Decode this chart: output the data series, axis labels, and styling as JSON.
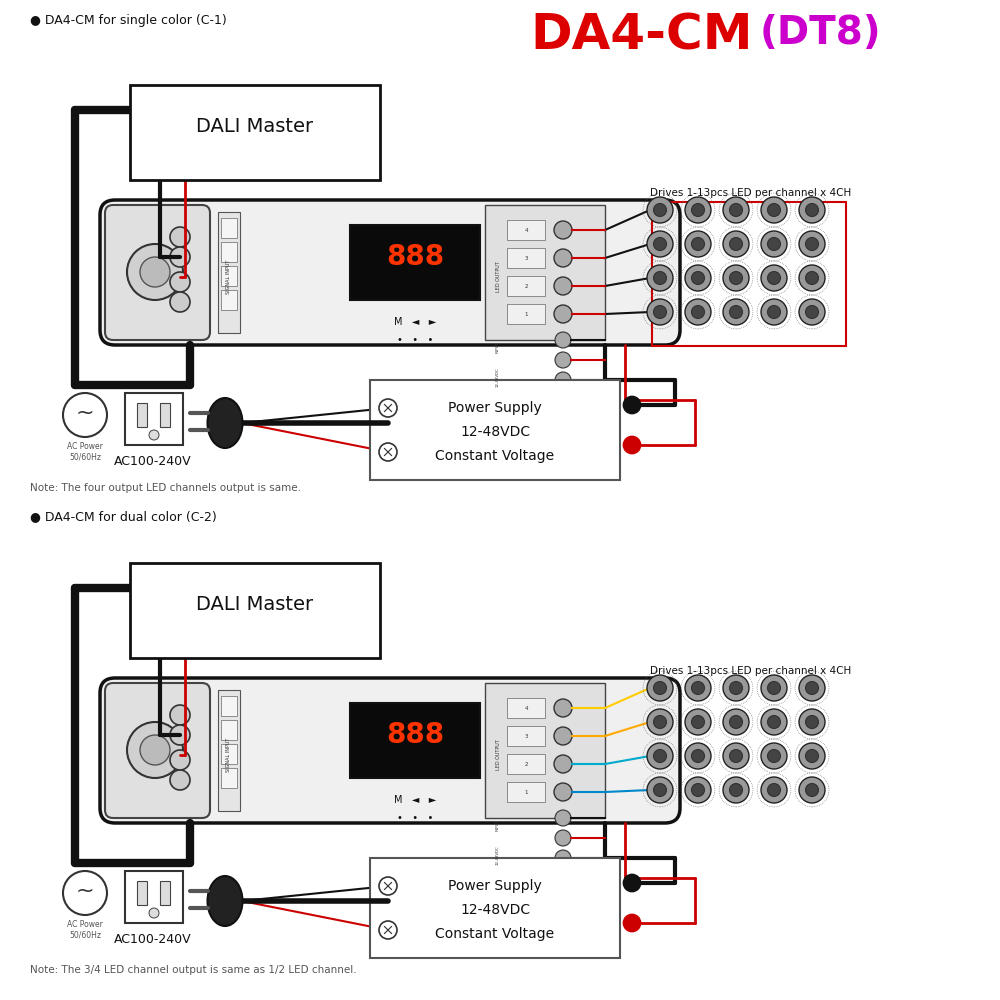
{
  "title_main": "DA4-CM",
  "title_sub": "(DT8)",
  "title_main_color": "#dd0000",
  "title_sub_color": "#cc00cc",
  "bg_color": "#ffffff",
  "label_c1": "● DA4-CM for single color (C-1)",
  "label_c2": "● DA4-CM for dual color (C-2)",
  "dali_master_text": "DALI Master",
  "drives_text": "Drives 1-13pcs LED per channel x 4CH",
  "power_supply_text1": "Power Supply",
  "power_supply_text2": "12-48VDC",
  "power_supply_text3": "Constant Voltage",
  "ac_voltage_text": "AC100-240V",
  "ac_power_text": "AC Power\n50/60Hz",
  "note1": "Note: The four output LED channels output is same.",
  "note2": "Note: The 3/4 LED channel output is same as 1/2 LED channel.",
  "display_888": "888",
  "nav_text": "M   ◄   ►",
  "dots_text": "•   •   •"
}
